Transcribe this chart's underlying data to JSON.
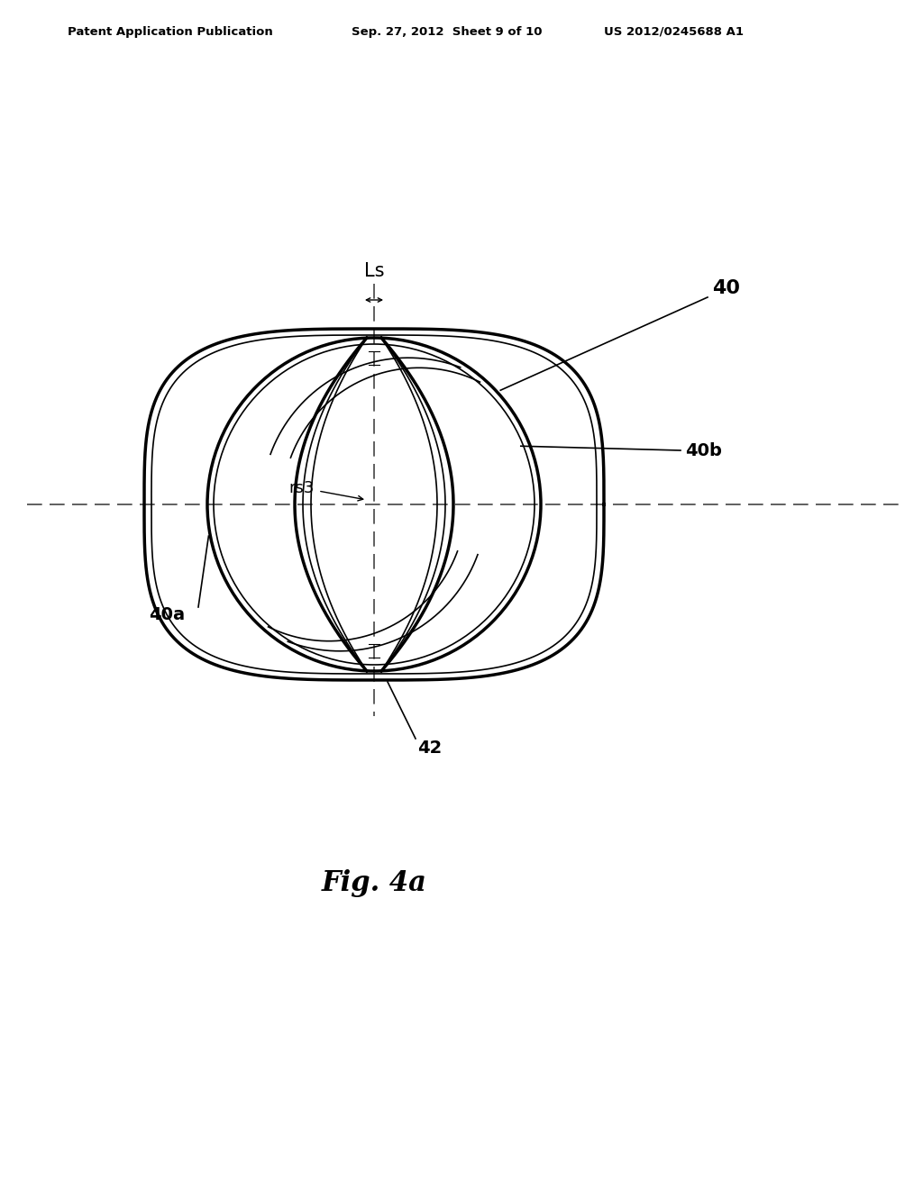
{
  "bg_color": "#ffffff",
  "title_text": "Fig. 4a",
  "header_left": "Patent Application Publication",
  "header_mid": "Sep. 27, 2012  Sheet 9 of 10",
  "header_right": "US 2012/0245688 A1",
  "label_40": "40",
  "label_40a": "40a",
  "label_40b": "40b",
  "label_42": "42",
  "label_Ls": "Ls",
  "label_rs3": "rs3",
  "line_color": "#000000"
}
